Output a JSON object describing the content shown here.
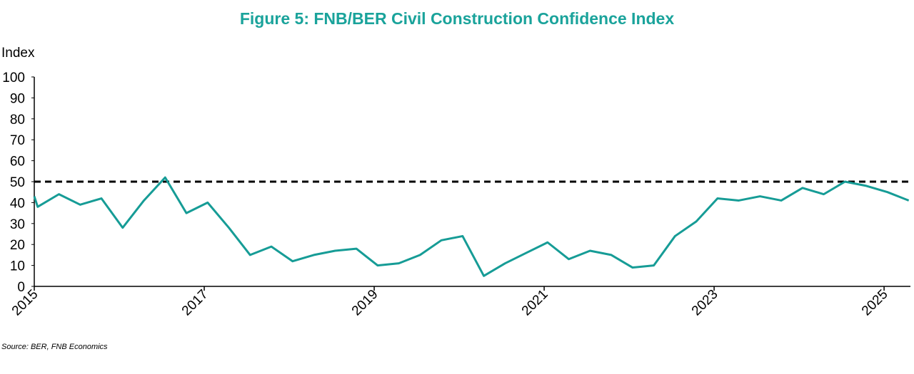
{
  "chart_data": {
    "type": "line",
    "title": "Figure 5: FNB/BER Civil Construction Confidence Index",
    "y_label": "Index",
    "source": "Source: BER, FNB Economics",
    "x": [
      2015.0,
      2015.04,
      2015.29,
      2015.54,
      2015.79,
      2016.04,
      2016.29,
      2016.54,
      2016.79,
      2017.04,
      2017.29,
      2017.54,
      2017.79,
      2018.04,
      2018.29,
      2018.54,
      2018.79,
      2019.04,
      2019.29,
      2019.54,
      2019.79,
      2020.04,
      2020.29,
      2020.54,
      2020.79,
      2021.04,
      2021.29,
      2021.54,
      2021.79,
      2022.04,
      2022.29,
      2022.54,
      2022.79,
      2023.04,
      2023.29,
      2023.54,
      2023.79,
      2024.04,
      2024.29,
      2024.54,
      2024.79,
      2025.04,
      2025.29
    ],
    "series": [
      {
        "name": "Civil Construction Confidence Index",
        "color": "#169c96",
        "values": [
          43,
          38,
          44,
          39,
          42,
          28,
          41,
          52,
          35,
          40,
          28,
          15,
          19,
          12,
          15,
          17,
          18,
          10,
          11,
          15,
          22,
          24,
          5,
          11,
          16,
          21,
          13,
          17,
          15,
          9,
          10,
          24,
          31,
          42,
          41,
          43,
          41,
          47,
          44,
          50,
          48,
          45,
          41
        ]
      }
    ],
    "reference_line": 50,
    "xlim": [
      2015,
      2025.31
    ],
    "xticks": [
      2015,
      2017,
      2019,
      2021,
      2023,
      2025
    ],
    "ylim": [
      0,
      100
    ],
    "yticks": [
      0,
      10,
      20,
      30,
      40,
      50,
      60,
      70,
      80,
      90,
      100
    ],
    "title_color": "#1aa39b"
  }
}
